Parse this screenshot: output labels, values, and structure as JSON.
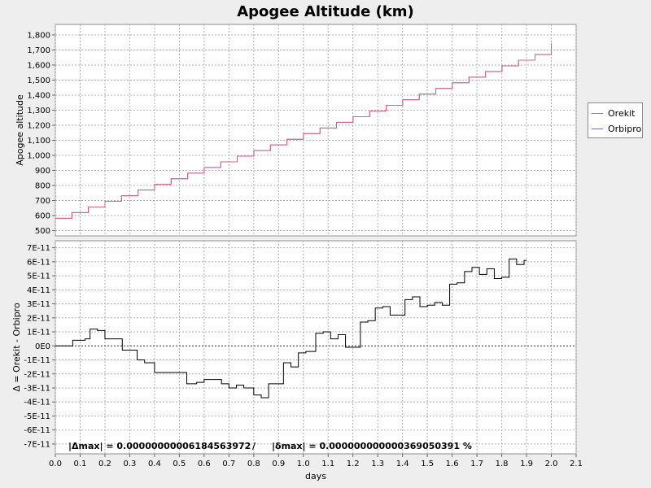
{
  "chart_data": {
    "title": "Apogee Altitude (km)",
    "xlabel": "days",
    "xlim": [
      0.0,
      2.1
    ],
    "xticks": [
      "0.0",
      "0.1",
      "0.2",
      "0.3",
      "0.4",
      "0.5",
      "0.6",
      "0.7",
      "0.8",
      "0.9",
      "1.0",
      "1.1",
      "1.2",
      "1.3",
      "1.4",
      "1.5",
      "1.6",
      "1.7",
      "1.8",
      "1.9",
      "2.0",
      "2.1"
    ],
    "grid": true,
    "legend_placement": "right",
    "legend": [
      {
        "name": "Orekit",
        "color": "#e06080"
      },
      {
        "name": "Orbipro",
        "color": "#7070d0"
      }
    ],
    "top_plot": {
      "type": "line",
      "ylabel": "Apogee altitude",
      "ylim": [
        465,
        1870
      ],
      "yticks": [
        "500",
        "600",
        "700",
        "800",
        "900",
        "1,000",
        "1,100",
        "1,200",
        "1,300",
        "1,400",
        "1,500",
        "1,600",
        "1,700",
        "1,800"
      ],
      "steps": {
        "x_start": 0.0,
        "x_end": 2.0,
        "step_width": 0.0667,
        "y_start": 582,
        "y_increment": 37.5
      },
      "final_point": {
        "x": 2.0,
        "y": 1745
      }
    },
    "bottom_plot": {
      "type": "line",
      "ylabel": "Δ = Orekit - Orbipro",
      "ylim": [
        -7.7e-11,
        7.5e-11
      ],
      "yticks": [
        "7E-11",
        "6E-11",
        "5E-11",
        "4E-11",
        "3E-11",
        "2E-11",
        "1E-11",
        "0E0",
        "-1E-11",
        "-2E-11",
        "-3E-11",
        "-4E-11",
        "-5E-11",
        "-6E-11",
        "-7E-11"
      ],
      "series_color": "#000000",
      "points": [
        [
          0.0,
          0.0
        ],
        [
          0.07,
          0.0
        ],
        [
          0.07,
          4e-12
        ],
        [
          0.12,
          4e-12
        ],
        [
          0.12,
          5e-12
        ],
        [
          0.14,
          5e-12
        ],
        [
          0.14,
          1.2e-11
        ],
        [
          0.17,
          1.2e-11
        ],
        [
          0.17,
          1.1e-11
        ],
        [
          0.2,
          1.1e-11
        ],
        [
          0.2,
          5e-12
        ],
        [
          0.27,
          5e-12
        ],
        [
          0.27,
          -3e-12
        ],
        [
          0.33,
          -3e-12
        ],
        [
          0.33,
          -1e-11
        ],
        [
          0.36,
          -1e-11
        ],
        [
          0.36,
          -1.2e-11
        ],
        [
          0.4,
          -1.2e-11
        ],
        [
          0.4,
          -1.9e-11
        ],
        [
          0.53,
          -1.9e-11
        ],
        [
          0.53,
          -2.7e-11
        ],
        [
          0.57,
          -2.7e-11
        ],
        [
          0.57,
          -2.6e-11
        ],
        [
          0.6,
          -2.6e-11
        ],
        [
          0.6,
          -2.4e-11
        ],
        [
          0.67,
          -2.4e-11
        ],
        [
          0.67,
          -2.7e-11
        ],
        [
          0.7,
          -2.7e-11
        ],
        [
          0.7,
          -3e-11
        ],
        [
          0.73,
          -3e-11
        ],
        [
          0.73,
          -2.8e-11
        ],
        [
          0.76,
          -2.8e-11
        ],
        [
          0.76,
          -3e-11
        ],
        [
          0.8,
          -3e-11
        ],
        [
          0.8,
          -3.5e-11
        ],
        [
          0.83,
          -3.5e-11
        ],
        [
          0.83,
          -3.7e-11
        ],
        [
          0.86,
          -3.7e-11
        ],
        [
          0.86,
          -2.7e-11
        ],
        [
          0.92,
          -2.7e-11
        ],
        [
          0.92,
          -1.2e-11
        ],
        [
          0.95,
          -1.2e-11
        ],
        [
          0.95,
          -1.5e-11
        ],
        [
          0.98,
          -1.5e-11
        ],
        [
          0.98,
          -5e-12
        ],
        [
          1.01,
          -5e-12
        ],
        [
          1.01,
          -4e-12
        ],
        [
          1.05,
          -4e-12
        ],
        [
          1.05,
          9e-12
        ],
        [
          1.08,
          9e-12
        ],
        [
          1.08,
          1e-11
        ],
        [
          1.11,
          1e-11
        ],
        [
          1.11,
          5e-12
        ],
        [
          1.14,
          5e-12
        ],
        [
          1.14,
          8e-12
        ],
        [
          1.17,
          8e-12
        ],
        [
          1.17,
          -1e-12
        ],
        [
          1.23,
          -1e-12
        ],
        [
          1.23,
          1.7e-11
        ],
        [
          1.26,
          1.7e-11
        ],
        [
          1.26,
          1.8e-11
        ],
        [
          1.29,
          1.8e-11
        ],
        [
          1.29,
          2.7e-11
        ],
        [
          1.32,
          2.7e-11
        ],
        [
          1.32,
          2.8e-11
        ],
        [
          1.35,
          2.8e-11
        ],
        [
          1.35,
          2.2e-11
        ],
        [
          1.41,
          2.2e-11
        ],
        [
          1.41,
          3.3e-11
        ],
        [
          1.44,
          3.3e-11
        ],
        [
          1.44,
          3.5e-11
        ],
        [
          1.47,
          3.5e-11
        ],
        [
          1.47,
          2.8e-11
        ],
        [
          1.5,
          2.8e-11
        ],
        [
          1.5,
          2.9e-11
        ],
        [
          1.53,
          2.9e-11
        ],
        [
          1.53,
          3.1e-11
        ],
        [
          1.56,
          3.1e-11
        ],
        [
          1.56,
          2.9e-11
        ],
        [
          1.59,
          2.9e-11
        ],
        [
          1.59,
          4.4e-11
        ],
        [
          1.62,
          4.4e-11
        ],
        [
          1.62,
          4.5e-11
        ],
        [
          1.65,
          4.5e-11
        ],
        [
          1.65,
          5.3e-11
        ],
        [
          1.68,
          5.3e-11
        ],
        [
          1.68,
          5.6e-11
        ],
        [
          1.71,
          5.6e-11
        ],
        [
          1.71,
          5.1e-11
        ],
        [
          1.74,
          5.1e-11
        ],
        [
          1.74,
          5.5e-11
        ],
        [
          1.77,
          5.5e-11
        ],
        [
          1.77,
          4.8e-11
        ],
        [
          1.8,
          4.8e-11
        ],
        [
          1.8,
          4.9e-11
        ],
        [
          1.83,
          4.9e-11
        ],
        [
          1.83,
          6.2e-11
        ],
        [
          1.86,
          6.2e-11
        ],
        [
          1.86,
          5.8e-11
        ],
        [
          1.89,
          5.8e-11
        ],
        [
          1.89,
          6.1e-11
        ],
        [
          1.9,
          6.1e-11
        ]
      ],
      "annotation": {
        "delta_max": "|Δmax| = 0.00000000006184563972",
        "separator": "/",
        "delta_rel_max": "|δmax| = 0.000000000000369050391 %"
      }
    }
  }
}
